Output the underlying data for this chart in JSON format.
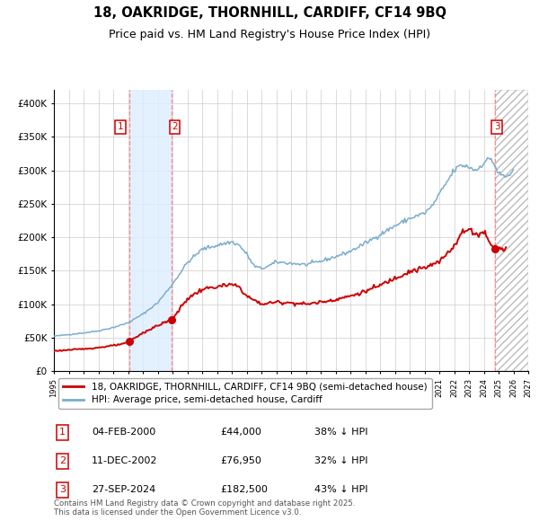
{
  "title": "18, OAKRIDGE, THORNHILL, CARDIFF, CF14 9BQ",
  "subtitle": "Price paid vs. HM Land Registry's House Price Index (HPI)",
  "title_fontsize": 10.5,
  "subtitle_fontsize": 9,
  "background_color": "#ffffff",
  "plot_bg_color": "#ffffff",
  "grid_color": "#cccccc",
  "ylim": [
    0,
    420000
  ],
  "yticks": [
    0,
    50000,
    100000,
    150000,
    200000,
    250000,
    300000,
    350000,
    400000
  ],
  "x_start_year": 1995,
  "x_end_year": 2027,
  "sale_decimal": [
    2000.087,
    2002.956,
    2024.75
  ],
  "sale_prices": [
    44000,
    76950,
    182500
  ],
  "sale_labels": [
    "1",
    "2",
    "3"
  ],
  "legend_entries": [
    "18, OAKRIDGE, THORNHILL, CARDIFF, CF14 9BQ (semi-detached house)",
    "HPI: Average price, semi-detached house, Cardiff"
  ],
  "red_line_color": "#cc0000",
  "blue_line_color": "#7aadcc",
  "sale_marker_color": "#cc0000",
  "dashed_line_color": "#ff8888",
  "shade_color": "#ddeeff",
  "hatch_color": "#bbbbbb",
  "footnote": "Contains HM Land Registry data © Crown copyright and database right 2025.\nThis data is licensed under the Open Government Licence v3.0.",
  "table_rows": [
    {
      "label": "1",
      "date": "04-FEB-2000",
      "price": "£44,000",
      "pct": "38% ↓ HPI"
    },
    {
      "label": "2",
      "date": "11-DEC-2002",
      "price": "£76,950",
      "pct": "32% ↓ HPI"
    },
    {
      "label": "3",
      "date": "27-SEP-2024",
      "price": "£182,500",
      "pct": "43% ↓ HPI"
    }
  ],
  "hpi_key_points": {
    "1995.0": 52000,
    "1996.0": 54500,
    "1997.0": 57000,
    "1998.0": 60000,
    "1999.0": 65000,
    "2000.0": 72000,
    "2001.0": 85000,
    "2002.0": 102000,
    "2003.0": 130000,
    "2004.0": 162000,
    "2005.0": 182000,
    "2006.0": 188000,
    "2007.0": 193000,
    "2007.5": 188000,
    "2008.0": 175000,
    "2008.5": 157000,
    "2009.0": 153000,
    "2009.5": 157000,
    "2010.0": 163000,
    "2011.0": 161000,
    "2012.0": 159000,
    "2013.0": 164000,
    "2014.0": 171000,
    "2015.0": 179000,
    "2016.0": 191000,
    "2017.0": 204000,
    "2018.0": 217000,
    "2019.0": 228000,
    "2020.0": 236000,
    "2020.5": 246000,
    "2021.0": 264000,
    "2022.0": 300000,
    "2022.5": 308000,
    "2023.0": 305000,
    "2023.5": 300000,
    "2024.0": 312000,
    "2024.5": 318000,
    "2025.0": 295000,
    "2025.5": 290000,
    "2026.0": 298000
  },
  "red_key_points": {
    "1995.0": 30000,
    "1996.0": 31500,
    "1997.0": 33000,
    "1998.0": 35000,
    "1999.0": 38000,
    "1999.8": 41000,
    "2000.087": 44000,
    "2001.0": 57000,
    "2002.0": 68000,
    "2002.956": 76950,
    "2003.1": 81000,
    "2004.0": 108000,
    "2005.0": 122000,
    "2006.0": 126000,
    "2007.0": 129000,
    "2007.5": 126000,
    "2008.0": 112000,
    "2009.0": 100000,
    "2010.0": 103000,
    "2011.0": 102000,
    "2012.0": 100000,
    "2013.0": 103000,
    "2014.0": 107000,
    "2015.0": 112000,
    "2016.0": 119000,
    "2017.0": 128000,
    "2018.0": 139000,
    "2019.0": 149000,
    "2020.0": 154000,
    "2021.0": 163000,
    "2022.0": 188000,
    "2022.5": 206000,
    "2023.0": 212000,
    "2023.5": 204000,
    "2024.0": 208000,
    "2024.75": 182500,
    "2025.0": 184000,
    "2025.4": 181000
  }
}
